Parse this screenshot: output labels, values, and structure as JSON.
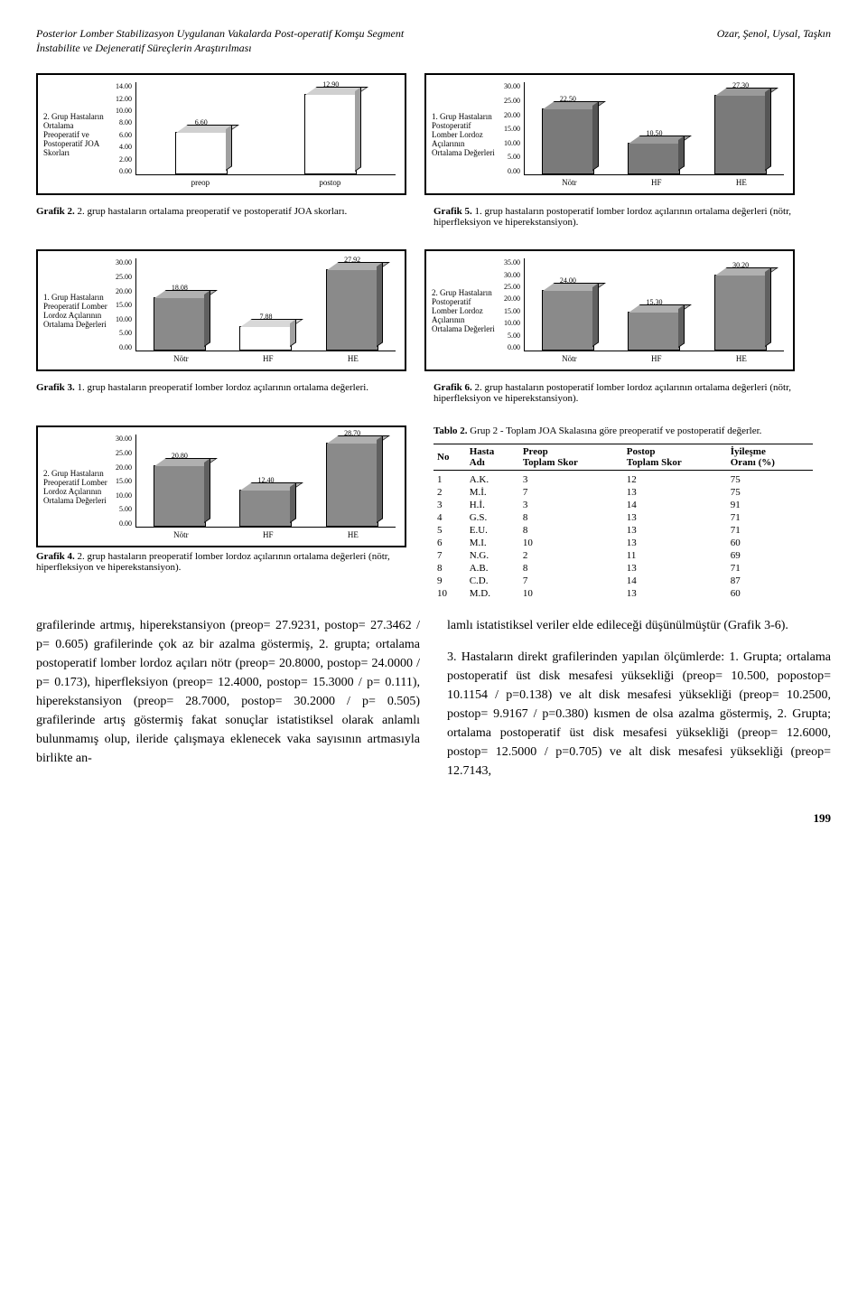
{
  "header": {
    "title_left": "Posterior Lomber Stabilizasyon Uygulanan Vakalarda Post-operatif Komşu Segment İnstabilite ve Dejeneratif Süreçlerin Araştırılması",
    "title_right": "Ozar, Şenol, Uysal, Taşkın"
  },
  "charts": [
    {
      "side_label": "2. Grup Hastaların Ortalama Preoperatif ve Postoperatif JOA Skorları",
      "y_ticks": [
        "14.00",
        "12.00",
        "10.00",
        "8.00",
        "6.00",
        "4.00",
        "2.00",
        "0.00"
      ],
      "y_max": 14,
      "bars": [
        {
          "label": "preop",
          "value": 6.6,
          "face": "#ffffff",
          "top": "#d0d0d0",
          "side": "#a0a0a0"
        },
        {
          "label": "postop",
          "value": 12.9,
          "face": "#ffffff",
          "top": "#d0d0d0",
          "side": "#a0a0a0"
        }
      ],
      "caption": "Grafik 2. 2. grup hastaların ortalama preoperatif ve postoperatif JOA skorları."
    },
    {
      "side_label": "1. Grup Hastaların Postoperatif Lomber Lordoz Açılarının Ortalama Değerleri",
      "y_ticks": [
        "30.00",
        "25.00",
        "20.00",
        "15.00",
        "10.00",
        "5.00",
        "0.00"
      ],
      "y_max": 30,
      "bars": [
        {
          "label": "Nötr",
          "value": 22.5,
          "face": "#7a7a7a",
          "top": "#9a9a9a",
          "side": "#555555"
        },
        {
          "label": "HF",
          "value": 10.5,
          "face": "#7a7a7a",
          "top": "#9a9a9a",
          "side": "#555555"
        },
        {
          "label": "HE",
          "value": 27.3,
          "face": "#7a7a7a",
          "top": "#9a9a9a",
          "side": "#555555"
        }
      ],
      "caption": "Grafik 5. 1. grup hastaların postoperatif lomber lordoz açılarının ortalama değerleri (nötr, hiperfleksiyon ve hiperekstansiyon)."
    },
    {
      "side_label": "1. Grup Hastaların Preoperatif Lomber Lordoz Açılarının Ortalama Değerleri",
      "y_ticks": [
        "30.00",
        "25.00",
        "20.00",
        "15.00",
        "10.00",
        "5.00",
        "0.00"
      ],
      "y_max": 30,
      "bars": [
        {
          "label": "Nötr",
          "value": 18.08,
          "face": "#8a8a8a",
          "top": "#b0b0b0",
          "side": "#606060"
        },
        {
          "label": "HF",
          "value": 7.88,
          "face": "#ffffff",
          "top": "#d8d8d8",
          "side": "#a0a0a0"
        },
        {
          "label": "HE",
          "value": 27.92,
          "face": "#8a8a8a",
          "top": "#b0b0b0",
          "side": "#606060"
        }
      ],
      "caption": "Grafik 3. 1. grup hastaların preoperatif lomber lordoz açılarının ortalama değerleri."
    },
    {
      "side_label": "2. Grup Hastaların Postoperatif Lomber Lordoz Açılarının Ortalama Değerleri",
      "y_ticks": [
        "35.00",
        "30.00",
        "25.00",
        "20.00",
        "15.00",
        "10.00",
        "5.00",
        "0.00"
      ],
      "y_max": 35,
      "bars": [
        {
          "label": "Nötr",
          "value": 24.0,
          "face": "#8a8a8a",
          "top": "#b0b0b0",
          "side": "#606060"
        },
        {
          "label": "HF",
          "value": 15.3,
          "face": "#8a8a8a",
          "top": "#b0b0b0",
          "side": "#606060"
        },
        {
          "label": "HE",
          "value": 30.2,
          "face": "#8a8a8a",
          "top": "#b0b0b0",
          "side": "#606060"
        }
      ],
      "caption": "Grafik 6. 2. grup hastaların postoperatif lomber lordoz açılarının ortalama değerleri (nötr, hiperfleksiyon ve hiperekstansiyon)."
    },
    {
      "side_label": "2. Grup Hastaların Preoperatif Lomber Lordoz Açılarının Ortalama Değerleri",
      "y_ticks": [
        "30.00",
        "25.00",
        "20.00",
        "15.00",
        "10.00",
        "5.00",
        "0.00"
      ],
      "y_max": 30,
      "bars": [
        {
          "label": "Nötr",
          "value": 20.8,
          "face": "#8a8a8a",
          "top": "#b0b0b0",
          "side": "#606060"
        },
        {
          "label": "HF",
          "value": 12.4,
          "face": "#8a8a8a",
          "top": "#b0b0b0",
          "side": "#606060"
        },
        {
          "label": "HE",
          "value": 28.7,
          "face": "#8a8a8a",
          "top": "#b0b0b0",
          "side": "#606060"
        }
      ],
      "caption": "Grafik 4. 2. grup hastaların preoperatif lomber lordoz açılarının ortalama değerleri (nötr, hiperfleksiyon ve hiperekstansiyon)."
    }
  ],
  "table": {
    "caption": "Tablo 2. Grup 2 - Toplam JOA Skalasına göre preoperatif ve postoperatif değerler.",
    "headers": [
      "No",
      "Hasta Adı",
      "Preop Toplam Skor",
      "Postop Toplam Skor",
      "İyileşme Oranı (%)"
    ],
    "rows": [
      [
        "1",
        "A.K.",
        "3",
        "12",
        "75"
      ],
      [
        "2",
        "M.İ.",
        "7",
        "13",
        "75"
      ],
      [
        "3",
        "H.İ.",
        "3",
        "14",
        "91"
      ],
      [
        "4",
        "G.S.",
        "8",
        "13",
        "71"
      ],
      [
        "5",
        "E.U.",
        "8",
        "13",
        "71"
      ],
      [
        "6",
        "M.I.",
        "10",
        "13",
        "60"
      ],
      [
        "7",
        "N.G.",
        "2",
        "11",
        "69"
      ],
      [
        "8",
        "A.B.",
        "8",
        "13",
        "71"
      ],
      [
        "9",
        "C.D.",
        "7",
        "14",
        "87"
      ],
      [
        "10",
        "M.D.",
        "10",
        "13",
        "60"
      ]
    ]
  },
  "body": {
    "left": "grafilerinde artmış, hiperekstansiyon (preop= 27.9231, postop= 27.3462 / p= 0.605) grafilerinde çok az bir azalma göstermiş, 2. grupta; ortalama postoperatif lomber lordoz açıları nötr (preop= 20.8000, postop= 24.0000 / p= 0.173), hiperfleksiyon (preop= 12.4000, postop= 15.3000 / p= 0.111), hiperekstansiyon (preop= 28.7000, postop= 30.2000 / p= 0.505) grafilerinde artış göstermiş fakat sonuçlar istatistiksel olarak anlamlı bulunmamış olup, ileride çalışmaya eklenecek vaka sayısının artmasıyla birlikte an-",
    "right_p1": "lamlı istatistiksel veriler elde edileceği düşünülmüştür (Grafik 3-6).",
    "right_p2": "3. Hastaların direkt grafilerinden yapılan ölçümlerde: 1. Grupta; ortalama postoperatif üst disk mesafesi yüksekliği (preop= 10.500, popostop= 10.1154 / p=0.138) ve alt disk mesafesi yüksekliği (preop= 10.2500, postop= 9.9167 / p=0.380) kısmen de olsa azalma göstermiş, 2. Grupta; ortalama postoperatif üst disk mesafesi yüksekliği (preop= 12.6000, postop= 12.5000 / p=0.705) ve alt disk mesafesi yüksekliği (preop= 12.7143,"
  },
  "page_number": "199"
}
